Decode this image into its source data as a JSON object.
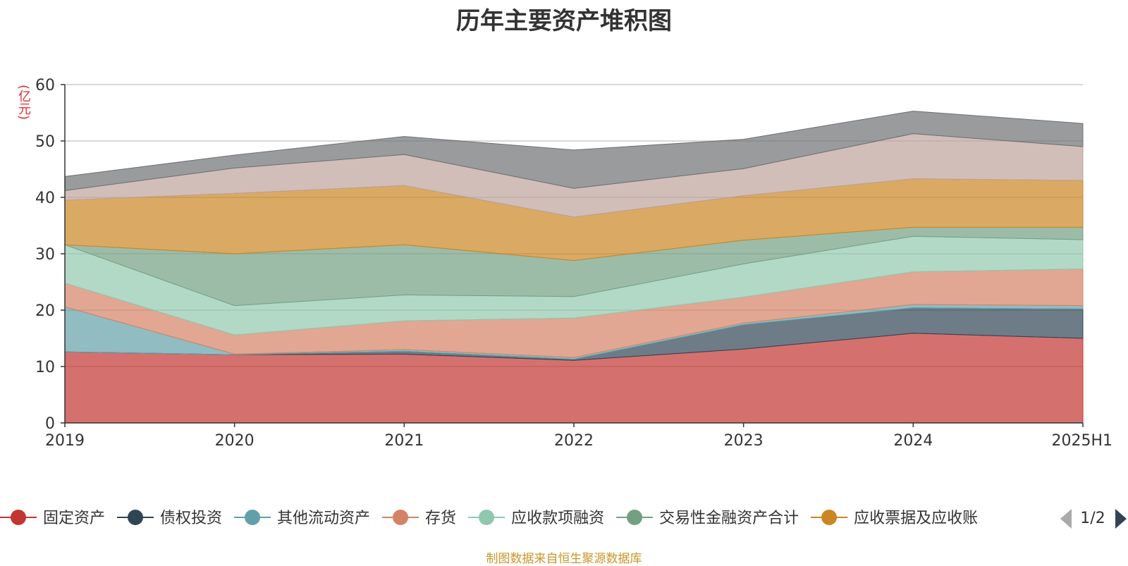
{
  "chart_data": {
    "type": "area",
    "stacked": true,
    "title": "历年主要资产堆积图",
    "unit_label": "(亿元)",
    "source_note": "制图数据来自恒生聚源数据库",
    "x": [
      "2019",
      "2020",
      "2021",
      "2022",
      "2023",
      "2024",
      "2025H1"
    ],
    "ylim": [
      0,
      60
    ],
    "yticks": [
      0,
      10,
      20,
      30,
      40,
      50,
      60
    ],
    "grid": true,
    "legend_position": "bottom",
    "legend_page": "1/2",
    "series": [
      {
        "name": "固定资产",
        "color": "#c23531",
        "values": [
          12.6,
          12.1,
          12.2,
          11.1,
          13.1,
          15.9,
          15.0
        ]
      },
      {
        "name": "债权投资",
        "color": "#2f4554",
        "values": [
          0.0,
          0.0,
          0.5,
          0.2,
          4.3,
          4.5,
          5.2
        ]
      },
      {
        "name": "其他流动资产",
        "color": "#61a0a8",
        "values": [
          8.0,
          0.1,
          0.3,
          0.3,
          0.3,
          0.6,
          0.6
        ]
      },
      {
        "name": "存货",
        "color": "#d48265",
        "values": [
          4.2,
          3.4,
          5.1,
          7.0,
          4.6,
          5.8,
          6.5
        ]
      },
      {
        "name": "应收款项融资",
        "color": "#91c7ae",
        "values": [
          6.8,
          5.2,
          4.6,
          3.8,
          5.9,
          6.3,
          5.2
        ]
      },
      {
        "name": "交易性金融资产合计",
        "color": "#749f83",
        "values": [
          0.0,
          9.2,
          8.9,
          6.4,
          4.2,
          1.6,
          2.2
        ]
      },
      {
        "name": "应收票据及应收账",
        "color": "#ca8622",
        "values": [
          7.9,
          10.7,
          10.5,
          7.7,
          7.9,
          8.6,
          8.3
        ]
      },
      {
        "name": "",
        "color": "#bda29a",
        "values": [
          1.7,
          4.5,
          5.5,
          5.1,
          4.8,
          8.0,
          6.0
        ]
      },
      {
        "name": "",
        "color": "#6e7074",
        "values": [
          2.5,
          2.3,
          3.2,
          6.8,
          5.2,
          4.0,
          4.1
        ]
      }
    ]
  }
}
